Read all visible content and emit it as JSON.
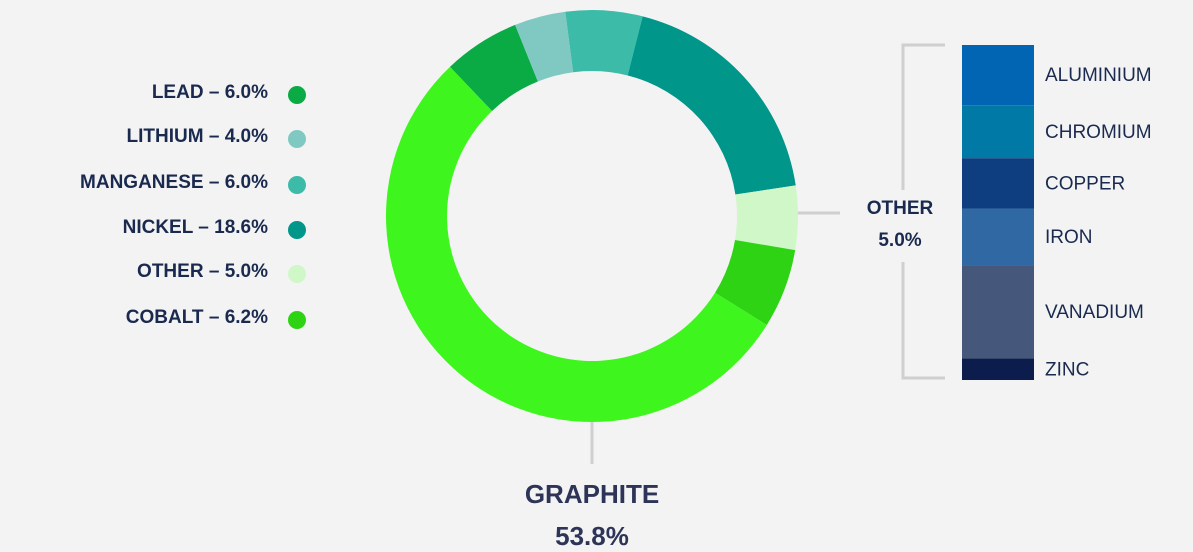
{
  "chart_data": {
    "type": "donut",
    "categories": [
      "LEAD",
      "LITHIUM",
      "MANGANESE",
      "NICKEL",
      "OTHER",
      "COBALT",
      "GRAPHITE"
    ],
    "values": [
      6.0,
      4.0,
      6.0,
      18.6,
      5.0,
      6.2,
      53.8
    ],
    "value_labels": [
      "6.0%",
      "4.0%",
      "6.0%",
      "18.6%",
      "5.0%",
      "6.2%",
      "53.8%"
    ],
    "colors": [
      "#0aab45",
      "#80c9c3",
      "#3bbba8",
      "#00968a",
      "#cff7c8",
      "#2ed314",
      "#3ef51d"
    ],
    "label_separator": "–",
    "other_breakdown": {
      "type": "stacked-bar",
      "categories": [
        "ALUMINIUM",
        "CHROMIUM",
        "COPPER",
        "IRON",
        "VANADIUM",
        "ZINC"
      ],
      "values": [
        0.9,
        0.79,
        0.75,
        0.85,
        1.39,
        0.32
      ],
      "colors": [
        "#0165b4",
        "#0079a7",
        "#0e3d80",
        "#2f68a3",
        "#45577a",
        "#0c1d4d"
      ]
    }
  }
}
